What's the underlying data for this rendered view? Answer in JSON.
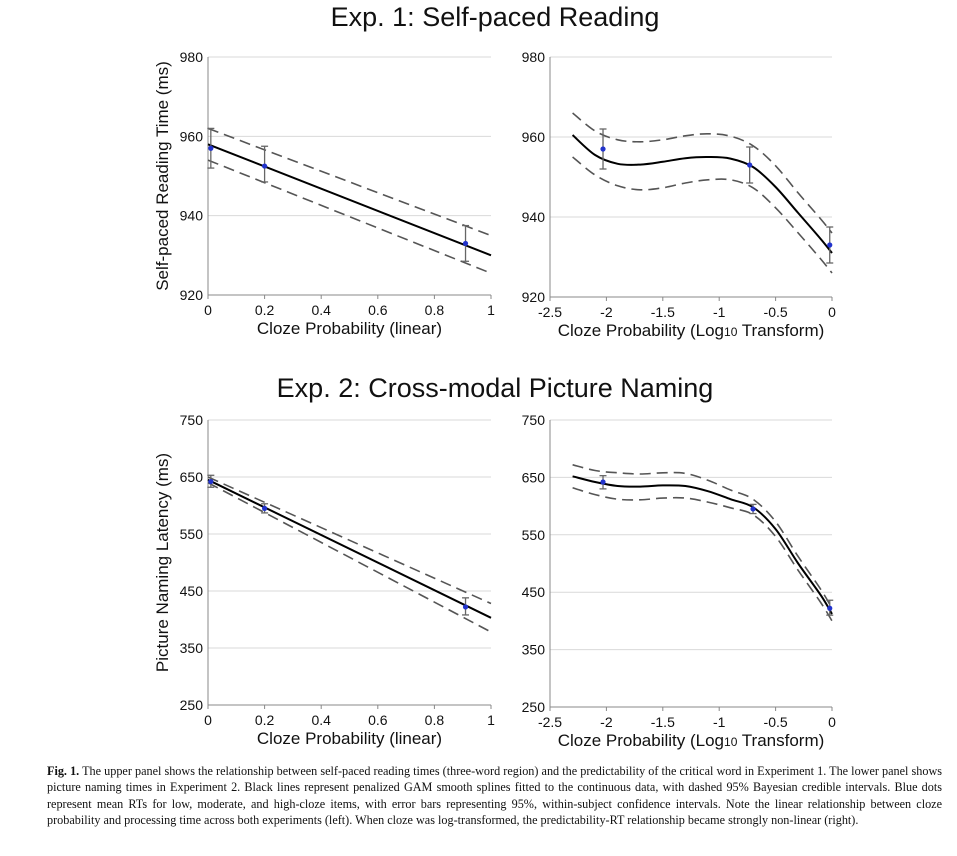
{
  "figure": {
    "title_top": "Exp. 1: Self-paced Reading",
    "title_bottom": "Exp. 2: Cross-modal Picture Naming",
    "caption_label": "Fig. 1.",
    "caption_text": "The upper panel shows the relationship between self-paced reading times (three-word region) and the predictability of the critical word in Experiment 1. The lower panel shows picture naming times in Experiment 2. Black lines represent penalized GAM smooth splines fitted to the continuous data, with dashed 95% Bayesian credible intervals. Blue dots represent mean RTs for low, moderate, and high-cloze items, with error bars representing 95%, within-subject confidence intervals. Note the linear relationship between cloze probability and processing time across both experiments (left). When cloze was log-transformed, the predictability-RT relationship became strongly non-linear (right)."
  },
  "colors": {
    "fit": "#000000",
    "ci": "#555555",
    "points": "#2233cc",
    "errorbars": "#666666",
    "axis": "#888888"
  },
  "chart_data": [
    {
      "id": "p1",
      "type": "line",
      "xlabel": "Cloze Probability (linear)",
      "ylabel": "Self-paced Reading Time (ms)",
      "xlim": [
        0,
        1
      ],
      "ylim": [
        920,
        980
      ],
      "xticks": [
        0,
        0.2,
        0.4,
        0.6,
        0.8,
        1
      ],
      "xtick_labels": [
        "0",
        "0.2",
        "0.4",
        "0.6",
        "0.8",
        "1"
      ],
      "yticks": [
        920,
        940,
        960,
        980
      ],
      "ytick_labels": [
        "920",
        "940",
        "960",
        "980"
      ],
      "fit": {
        "x": [
          0,
          1
        ],
        "y": [
          958,
          930
        ]
      },
      "ci_upper": {
        "x": [
          0,
          1
        ],
        "y": [
          962,
          935
        ]
      },
      "ci_lower": {
        "x": [
          0,
          1
        ],
        "y": [
          954,
          925.5
        ]
      },
      "points": [
        {
          "x": 0.01,
          "y": 957,
          "lo": 952,
          "hi": 962
        },
        {
          "x": 0.2,
          "y": 952.5,
          "lo": 948.5,
          "hi": 957.5
        },
        {
          "x": 0.91,
          "y": 933,
          "lo": 928.5,
          "hi": 937.5
        }
      ]
    },
    {
      "id": "p2",
      "type": "line",
      "xlabel_pre": "Cloze Probability (Log",
      "xlabel_sub": "10",
      "xlabel_post": " Transform)",
      "xlim": [
        -2.5,
        0
      ],
      "ylim": [
        920,
        980
      ],
      "xticks": [
        -2.5,
        -2,
        -1.5,
        -1,
        -0.5,
        0
      ],
      "xtick_labels": [
        "-2.5",
        "-2",
        "-1.5",
        "-1",
        "-0.5",
        "0"
      ],
      "yticks": [
        920,
        940,
        960,
        980
      ],
      "ytick_labels": [
        "920",
        "940",
        "960",
        "980"
      ],
      "fit": {
        "x": [
          -2.3,
          -2.1,
          -1.9,
          -1.7,
          -1.5,
          -1.3,
          -1.1,
          -0.9,
          -0.7,
          -0.5,
          -0.3,
          -0.1,
          0
        ],
        "y": [
          960.5,
          955.5,
          953.3,
          953.1,
          953.8,
          954.7,
          955.0,
          954.6,
          952.5,
          947.5,
          941,
          934.5,
          931
        ]
      },
      "ci_upper": {
        "x": [
          -2.3,
          -2.1,
          -1.9,
          -1.7,
          -1.5,
          -1.3,
          -1.1,
          -0.9,
          -0.7,
          -0.5,
          -0.3,
          -0.1,
          0
        ],
        "y": [
          966,
          961.5,
          959.3,
          958.8,
          959.3,
          960.3,
          960.8,
          960.2,
          957.8,
          952.8,
          946,
          939.5,
          936
        ]
      },
      "ci_lower": {
        "x": [
          -2.3,
          -2.1,
          -1.9,
          -1.7,
          -1.5,
          -1.3,
          -1.1,
          -0.9,
          -0.7,
          -0.5,
          -0.3,
          -0.1,
          0
        ],
        "y": [
          955,
          950.5,
          947.8,
          946.8,
          947.3,
          948.5,
          949.3,
          949.3,
          947.3,
          942.3,
          936,
          929.5,
          926
        ]
      },
      "points": [
        {
          "x": -2.03,
          "y": 957,
          "lo": 952,
          "hi": 962
        },
        {
          "x": -0.73,
          "y": 953,
          "lo": 948.5,
          "hi": 957.5
        },
        {
          "x": -0.02,
          "y": 933,
          "lo": 928.5,
          "hi": 937.5
        }
      ]
    },
    {
      "id": "p3",
      "type": "line",
      "xlabel": "Cloze Probability (linear)",
      "ylabel": "Picture Naming Latency (ms)",
      "xlim": [
        0,
        1
      ],
      "ylim": [
        250,
        750
      ],
      "xticks": [
        0,
        0.2,
        0.4,
        0.6,
        0.8,
        1
      ],
      "xtick_labels": [
        "0",
        "0.2",
        "0.4",
        "0.6",
        "0.8",
        "1"
      ],
      "yticks": [
        250,
        350,
        450,
        550,
        650,
        750
      ],
      "ytick_labels": [
        "250",
        "350",
        "450",
        "550",
        "650",
        "750"
      ],
      "fit": {
        "x": [
          0,
          1
        ],
        "y": [
          645,
          403
        ]
      },
      "ci_upper": {
        "x": [
          0,
          1
        ],
        "y": [
          650,
          428
        ]
      },
      "ci_lower": {
        "x": [
          0,
          1
        ],
        "y": [
          640,
          378
        ]
      },
      "points": [
        {
          "x": 0.01,
          "y": 642,
          "lo": 632,
          "hi": 653
        },
        {
          "x": 0.2,
          "y": 595,
          "lo": 587,
          "hi": 603
        },
        {
          "x": 0.91,
          "y": 422,
          "lo": 408,
          "hi": 438
        }
      ]
    },
    {
      "id": "p4",
      "type": "line",
      "xlabel_pre": "Cloze Probability (Log",
      "xlabel_sub": "10",
      "xlabel_post": " Transform)",
      "xlim": [
        -2.5,
        0
      ],
      "ylim": [
        250,
        750
      ],
      "xticks": [
        -2.5,
        -2,
        -1.5,
        -1,
        -0.5,
        0
      ],
      "xtick_labels": [
        "-2.5",
        "-2",
        "-1.5",
        "-1",
        "-0.5",
        "0"
      ],
      "yticks": [
        250,
        350,
        450,
        550,
        650,
        750
      ],
      "ytick_labels": [
        "250",
        "350",
        "450",
        "550",
        "650",
        "750"
      ],
      "fit": {
        "x": [
          -2.3,
          -2.1,
          -1.9,
          -1.7,
          -1.5,
          -1.3,
          -1.1,
          -0.9,
          -0.7,
          -0.5,
          -0.3,
          -0.1,
          0
        ],
        "y": [
          652,
          642,
          635,
          634,
          636,
          635,
          626,
          612,
          598,
          560,
          500,
          445,
          412
        ]
      },
      "ci_upper": {
        "x": [
          -2.3,
          -2.1,
          -1.9,
          -1.7,
          -1.5,
          -1.3,
          -1.1,
          -0.9,
          -0.7,
          -0.5,
          -0.3,
          -0.1,
          0
        ],
        "y": [
          672,
          662,
          658,
          656,
          658,
          657,
          645,
          628,
          612,
          573,
          512,
          455,
          422
        ]
      },
      "ci_lower": {
        "x": [
          -2.3,
          -2.1,
          -1.9,
          -1.7,
          -1.5,
          -1.3,
          -1.1,
          -0.9,
          -0.7,
          -0.5,
          -0.3,
          -0.1,
          0
        ],
        "y": [
          632,
          620,
          612,
          611,
          614,
          614,
          607,
          597,
          585,
          547,
          488,
          432,
          400
        ]
      },
      "points": [
        {
          "x": -2.03,
          "y": 642,
          "lo": 630,
          "hi": 653
        },
        {
          "x": -0.7,
          "y": 595,
          "lo": 587,
          "hi": 603
        },
        {
          "x": -0.02,
          "y": 422,
          "lo": 410,
          "hi": 436
        }
      ]
    }
  ]
}
